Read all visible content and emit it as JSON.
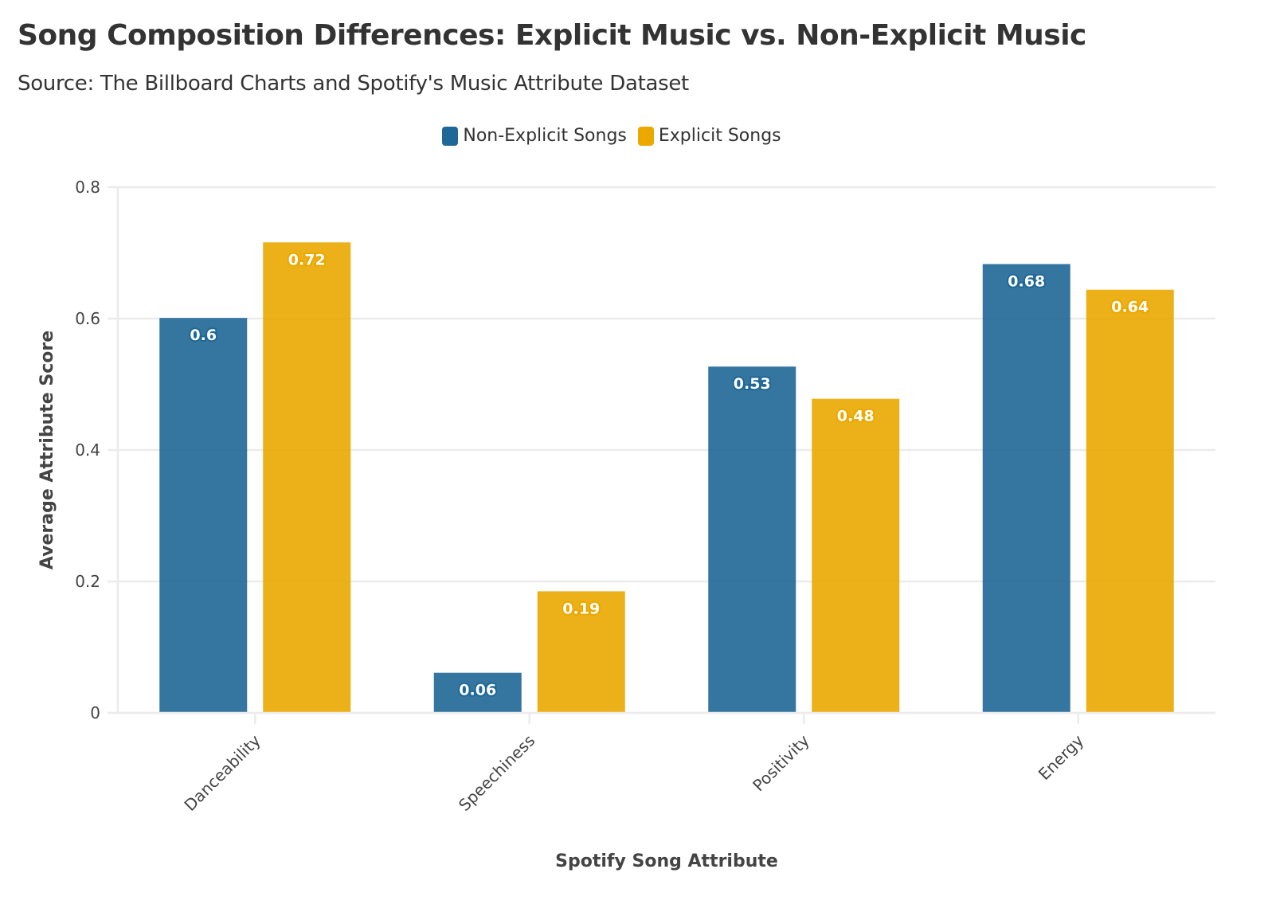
{
  "chart_data": {
    "type": "bar",
    "title": "Song Composition Differences: Explicit Music vs. Non-Explicit Music",
    "subtitle": "Source: The Billboard Charts and Spotify's Music Attribute Dataset",
    "xlabel": "Spotify Song Attribute",
    "ylabel": "Average Attribute Score",
    "categories": [
      "Danceability",
      "Speechiness",
      "Positivity",
      "Energy"
    ],
    "series": [
      {
        "name": "Non-Explicit Songs",
        "color": "#1f6796",
        "values": [
          0.601,
          0.061,
          0.527,
          0.683
        ],
        "labels": [
          "0.6",
          "0.06",
          "0.53",
          "0.68"
        ]
      },
      {
        "name": "Explicit Songs",
        "color": "#eaa800",
        "values": [
          0.716,
          0.185,
          0.478,
          0.644
        ],
        "labels": [
          "0.72",
          "0.19",
          "0.48",
          "0.64"
        ]
      }
    ],
    "ylim": [
      0,
      0.8
    ],
    "yticks": [
      "0",
      "0.2",
      "0.4",
      "0.6",
      "0.8"
    ],
    "grid": true,
    "legend": "top-center"
  }
}
